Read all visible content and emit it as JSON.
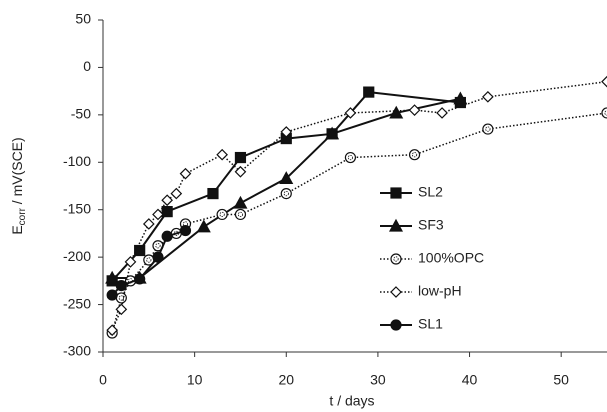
{
  "chart_data": {
    "type": "line",
    "x_label": "t / days",
    "y_label_parts": [
      "E",
      "corr",
      " / mV(SCE)"
    ],
    "xlim": [
      0,
      55
    ],
    "xticks": [
      0,
      10,
      20,
      30,
      40,
      50
    ],
    "ylim": [
      -300,
      50
    ],
    "yticks": [
      -300,
      -250,
      -200,
      -150,
      -100,
      -50,
      0,
      50
    ],
    "grid": false,
    "series": [
      {
        "name": "SL2",
        "color": "#111111",
        "marker": "square",
        "filled": true,
        "dash": "solid",
        "x": [
          1,
          4,
          7,
          12,
          15,
          20,
          25,
          29,
          39
        ],
        "values": [
          -225,
          -193,
          -152,
          -133,
          -95,
          -75,
          -70,
          -26,
          -37
        ]
      },
      {
        "name": "SF3",
        "color": "#111111",
        "marker": "triangle",
        "filled": true,
        "dash": "solid",
        "x": [
          1,
          4,
          11,
          15,
          20,
          25,
          32,
          39
        ],
        "values": [
          -222,
          -222,
          -168,
          -143,
          -117,
          -70,
          -48,
          -33
        ]
      },
      {
        "name": "100%OPC",
        "color": "#111111",
        "marker": "circle",
        "filled": false,
        "dash": "dotted",
        "x": [
          1,
          2,
          3,
          5,
          6,
          8,
          9,
          13,
          15,
          20,
          27,
          34,
          42,
          55
        ],
        "values": [
          -280,
          -243,
          -225,
          -203,
          -188,
          -175,
          -165,
          -155,
          -155,
          -133,
          -95,
          -92,
          -65,
          -48
        ]
      },
      {
        "name": "low-pH",
        "color": "#111111",
        "marker": "diamond",
        "filled": false,
        "dash": "dotted",
        "x": [
          1,
          2,
          3,
          5,
          6,
          7,
          8,
          9,
          13,
          15,
          20,
          27,
          34,
          37,
          42,
          55
        ],
        "values": [
          -277,
          -255,
          -205,
          -165,
          -155,
          -140,
          -133,
          -112,
          -92,
          -110,
          -68,
          -48,
          -45,
          -48,
          -31,
          -15
        ]
      },
      {
        "name": "SL1",
        "color": "#111111",
        "marker": "circle",
        "filled": true,
        "dash": "solid",
        "x": [
          1,
          2,
          4,
          6,
          7,
          9
        ],
        "values": [
          -240,
          -230,
          -223,
          -200,
          -178,
          -172
        ]
      }
    ]
  }
}
